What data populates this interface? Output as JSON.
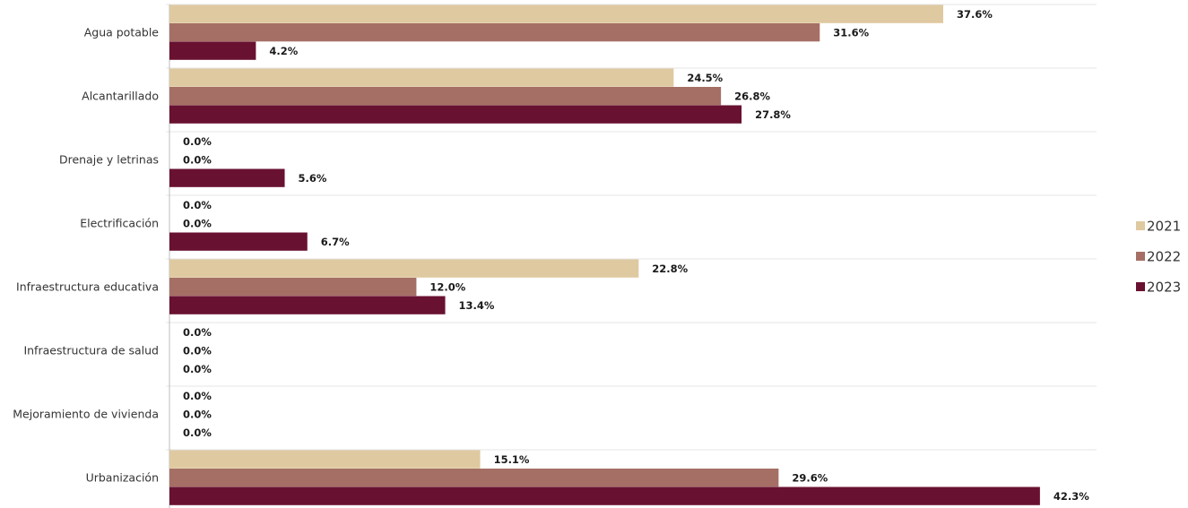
{
  "chart_data": {
    "type": "bar",
    "orientation": "horizontal",
    "categories": [
      "Agua potable",
      "Alcantarillado",
      "Drenaje y letrinas",
      "Electrificación",
      "Infraestructura educativa",
      "Infraestructura de salud",
      "Mejoramiento de vivienda",
      "Urbanización"
    ],
    "series": [
      {
        "name": "2021",
        "color": "#dfc9a0",
        "values": [
          37.6,
          24.5,
          0.0,
          0.0,
          22.8,
          0.0,
          0.0,
          15.1
        ],
        "labels": [
          "37.6%",
          "24.5%",
          "0.0%",
          "0.0%",
          "22.8%",
          "0.0%",
          "0.0%",
          "15.1%"
        ]
      },
      {
        "name": "2022",
        "color": "#a56f65",
        "values": [
          31.6,
          26.8,
          0.0,
          0.0,
          12.0,
          0.0,
          0.0,
          29.6
        ],
        "labels": [
          "31.6%",
          "26.8%",
          "0.0%",
          "0.0%",
          "12.0%",
          "0.0%",
          "0.0%",
          "29.6%"
        ]
      },
      {
        "name": "2023",
        "color": "#691131",
        "values": [
          4.2,
          27.8,
          5.6,
          6.7,
          13.4,
          0.0,
          0.0,
          42.3
        ],
        "labels": [
          "4.2%",
          "27.8%",
          "5.6%",
          "6.7%",
          "13.4%",
          "0.0%",
          "0.0%",
          "42.3%"
        ]
      }
    ],
    "xlim": [
      0,
      50
    ],
    "grid": "horizontal separators",
    "legend": "right"
  }
}
